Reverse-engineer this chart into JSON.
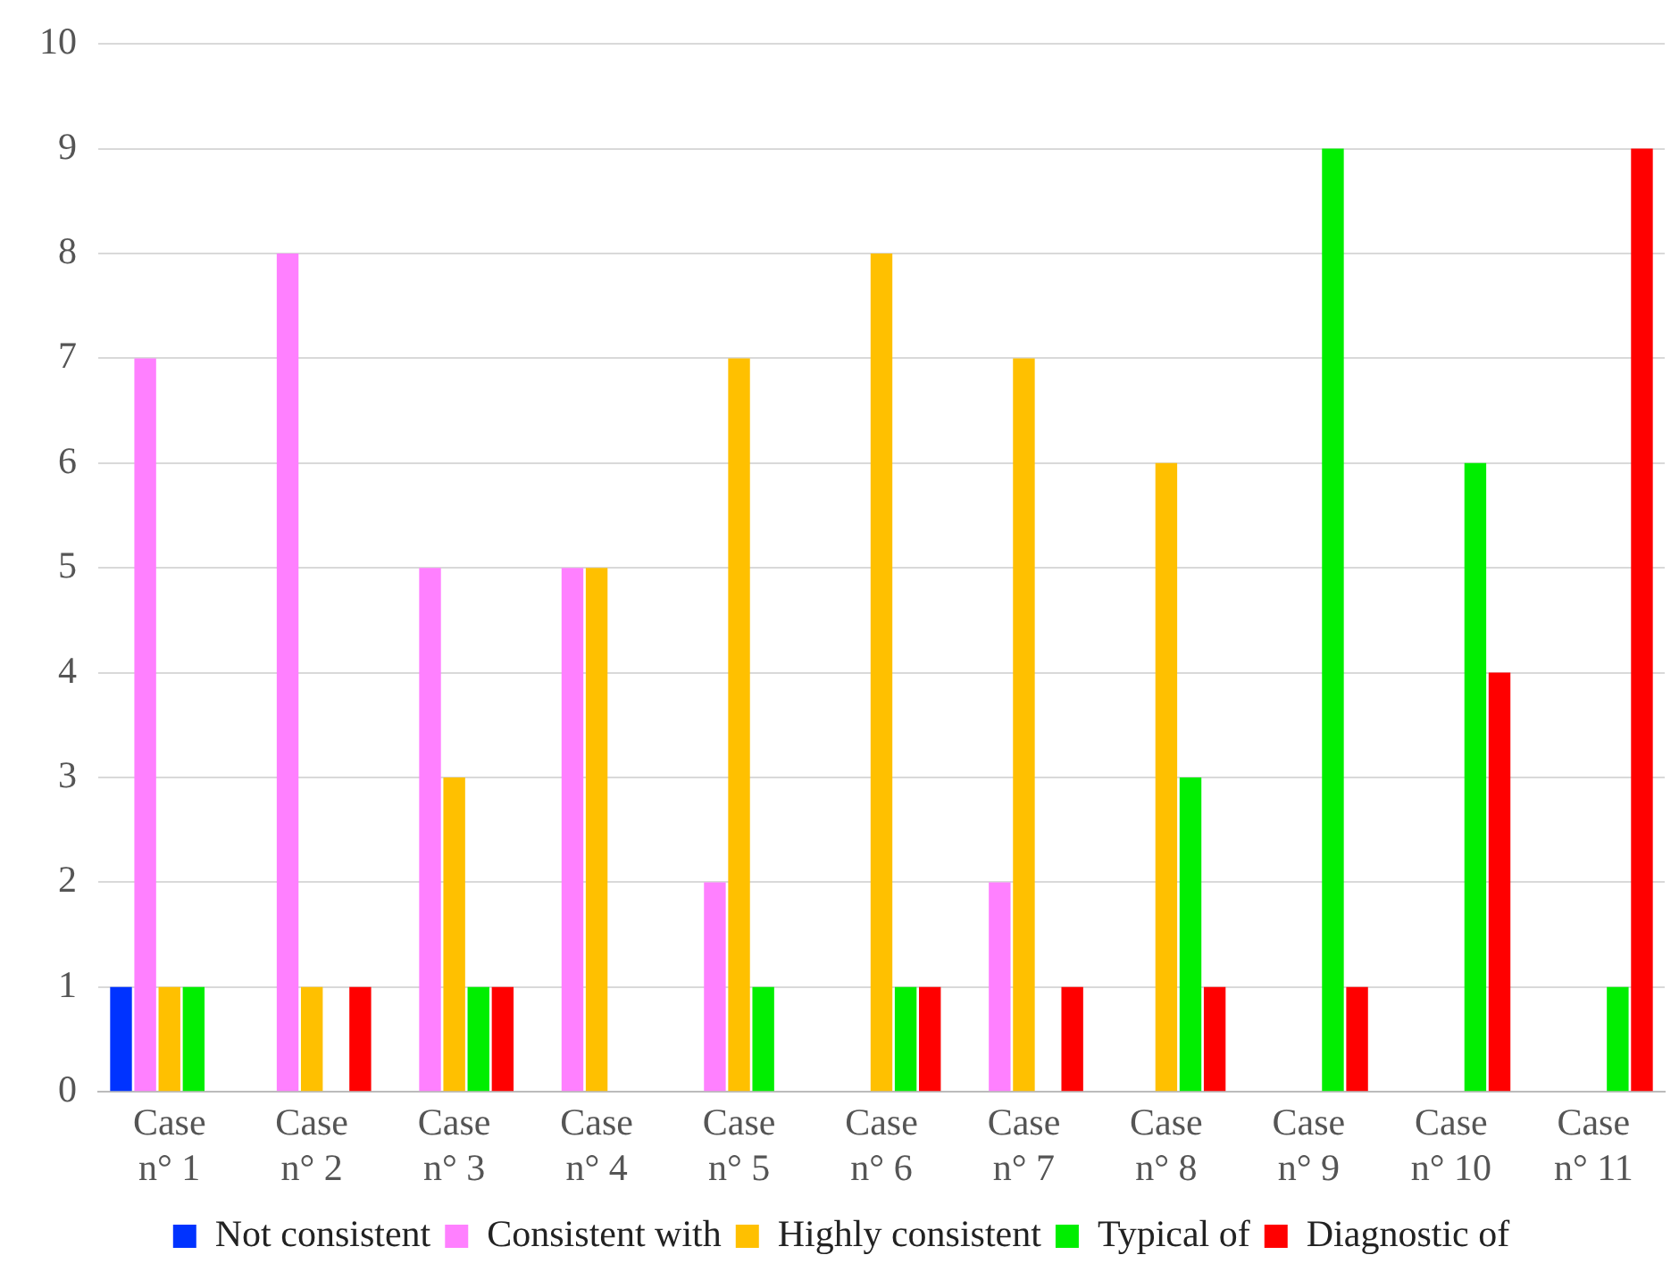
{
  "chart_data": {
    "type": "bar",
    "categories": [
      "Case\nn° 1",
      "Case\nn° 2",
      "Case\nn° 3",
      "Case\nn° 4",
      "Case\nn° 5",
      "Case\nn° 6",
      "Case\nn° 7",
      "Case\nn° 8",
      "Case\nn° 9",
      "Case\nn° 10",
      "Case\nn° 11"
    ],
    "series": [
      {
        "name": "Not consistent",
        "color": "#0033ff",
        "values": [
          1,
          0,
          0,
          0,
          0,
          0,
          0,
          0,
          0,
          0,
          0
        ]
      },
      {
        "name": "Consistent with",
        "color": "#ff80ff",
        "values": [
          7,
          8,
          5,
          5,
          2,
          0,
          2,
          0,
          0,
          0,
          0
        ]
      },
      {
        "name": "Highly consistent",
        "color": "#ffc000",
        "values": [
          1,
          1,
          3,
          5,
          7,
          8,
          7,
          6,
          0,
          0,
          0
        ]
      },
      {
        "name": "Typical of",
        "color": "#00ee00",
        "values": [
          1,
          0,
          1,
          0,
          1,
          1,
          0,
          3,
          9,
          6,
          1
        ]
      },
      {
        "name": "Diagnostic of",
        "color": "#ff0000",
        "values": [
          0,
          1,
          1,
          0,
          0,
          1,
          1,
          1,
          1,
          4,
          9
        ]
      }
    ],
    "ylim": [
      0,
      10
    ],
    "yticks": [
      0,
      1,
      2,
      3,
      4,
      5,
      6,
      7,
      8,
      9,
      10
    ],
    "grid": "y",
    "legend": "bottom"
  }
}
